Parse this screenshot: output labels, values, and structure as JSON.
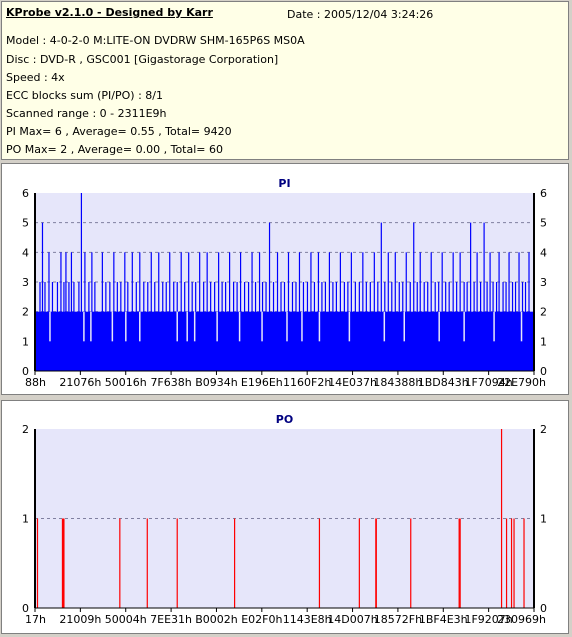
{
  "header": {
    "title": "KProbe v2.1.0 - Designed by Karr",
    "date": "Date : 2005/12/04 3:24:26",
    "model": "Model : 4-0-2-0 M:LITE-ON DVDRW SHM-165P6S MS0A",
    "disc": "Disc : DVD-R , GSC001 [Gigastorage Corporation]",
    "speed": "Speed : 4x",
    "ecc": "ECC blocks sum (PI/PO) : 8/1",
    "range": "Scanned range : 0 - 2311E9h",
    "pi_stats": "PI Max= 6 , Average= 0.55 , Total= 9420",
    "po_stats": "PO Max= 2 , Average= 0.00 , Total= 60"
  },
  "chart_data": [
    {
      "type": "bar",
      "title": "PI",
      "ylim": [
        0,
        6
      ],
      "yticks": [
        "0",
        "1",
        "2",
        "3",
        "4",
        "5",
        "6"
      ],
      "xticks": [
        "88h",
        "21076h",
        "50016h",
        "7F638h",
        "B0934h",
        "E196Eh",
        "1160F2h",
        "14E037h",
        "184388h",
        "1BD843h",
        "1F7094h",
        "22E790h"
      ],
      "grid": "dashed horizontal",
      "color": "#0000ff",
      "baseline": 2,
      "spikes": [
        {
          "x": 0.01,
          "v": 3
        },
        {
          "x": 0.015,
          "v": 5
        },
        {
          "x": 0.02,
          "v": 3
        },
        {
          "x": 0.028,
          "v": 4
        },
        {
          "x": 0.035,
          "v": 3
        },
        {
          "x": 0.045,
          "v": 3
        },
        {
          "x": 0.052,
          "v": 4
        },
        {
          "x": 0.058,
          "v": 3
        },
        {
          "x": 0.062,
          "v": 4
        },
        {
          "x": 0.068,
          "v": 3
        },
        {
          "x": 0.073,
          "v": 4
        },
        {
          "x": 0.078,
          "v": 3
        },
        {
          "x": 0.088,
          "v": 3
        },
        {
          "x": 0.093,
          "v": 6
        },
        {
          "x": 0.1,
          "v": 4
        },
        {
          "x": 0.108,
          "v": 3
        },
        {
          "x": 0.114,
          "v": 4
        },
        {
          "x": 0.12,
          "v": 3
        },
        {
          "x": 0.135,
          "v": 4
        },
        {
          "x": 0.142,
          "v": 3
        },
        {
          "x": 0.15,
          "v": 3
        },
        {
          "x": 0.158,
          "v": 4
        },
        {
          "x": 0.165,
          "v": 3
        },
        {
          "x": 0.172,
          "v": 3
        },
        {
          "x": 0.18,
          "v": 4
        },
        {
          "x": 0.186,
          "v": 3
        },
        {
          "x": 0.195,
          "v": 4
        },
        {
          "x": 0.203,
          "v": 3
        },
        {
          "x": 0.21,
          "v": 4
        },
        {
          "x": 0.218,
          "v": 3
        },
        {
          "x": 0.226,
          "v": 3
        },
        {
          "x": 0.233,
          "v": 4
        },
        {
          "x": 0.24,
          "v": 3
        },
        {
          "x": 0.248,
          "v": 4
        },
        {
          "x": 0.256,
          "v": 3
        },
        {
          "x": 0.263,
          "v": 3
        },
        {
          "x": 0.27,
          "v": 4
        },
        {
          "x": 0.278,
          "v": 3
        },
        {
          "x": 0.285,
          "v": 3
        },
        {
          "x": 0.293,
          "v": 4
        },
        {
          "x": 0.3,
          "v": 3
        },
        {
          "x": 0.308,
          "v": 4
        },
        {
          "x": 0.315,
          "v": 3
        },
        {
          "x": 0.322,
          "v": 3
        },
        {
          "x": 0.33,
          "v": 4
        },
        {
          "x": 0.338,
          "v": 3
        },
        {
          "x": 0.345,
          "v": 4
        },
        {
          "x": 0.352,
          "v": 3
        },
        {
          "x": 0.36,
          "v": 3
        },
        {
          "x": 0.368,
          "v": 4
        },
        {
          "x": 0.375,
          "v": 3
        },
        {
          "x": 0.382,
          "v": 3
        },
        {
          "x": 0.39,
          "v": 4
        },
        {
          "x": 0.398,
          "v": 3
        },
        {
          "x": 0.405,
          "v": 3
        },
        {
          "x": 0.412,
          "v": 4
        },
        {
          "x": 0.42,
          "v": 3
        },
        {
          "x": 0.428,
          "v": 3
        },
        {
          "x": 0.435,
          "v": 4
        },
        {
          "x": 0.442,
          "v": 3
        },
        {
          "x": 0.45,
          "v": 4
        },
        {
          "x": 0.456,
          "v": 3
        },
        {
          "x": 0.463,
          "v": 3
        },
        {
          "x": 0.47,
          "v": 5
        },
        {
          "x": 0.478,
          "v": 3
        },
        {
          "x": 0.486,
          "v": 4
        },
        {
          "x": 0.493,
          "v": 3
        },
        {
          "x": 0.5,
          "v": 3
        },
        {
          "x": 0.508,
          "v": 4
        },
        {
          "x": 0.516,
          "v": 3
        },
        {
          "x": 0.523,
          "v": 3
        },
        {
          "x": 0.53,
          "v": 4
        },
        {
          "x": 0.538,
          "v": 3
        },
        {
          "x": 0.546,
          "v": 3
        },
        {
          "x": 0.553,
          "v": 4
        },
        {
          "x": 0.56,
          "v": 3
        },
        {
          "x": 0.568,
          "v": 4
        },
        {
          "x": 0.575,
          "v": 3
        },
        {
          "x": 0.582,
          "v": 3
        },
        {
          "x": 0.59,
          "v": 4
        },
        {
          "x": 0.597,
          "v": 3
        },
        {
          "x": 0.604,
          "v": 3
        },
        {
          "x": 0.612,
          "v": 4
        },
        {
          "x": 0.62,
          "v": 3
        },
        {
          "x": 0.627,
          "v": 3
        },
        {
          "x": 0.634,
          "v": 4
        },
        {
          "x": 0.642,
          "v": 3
        },
        {
          "x": 0.65,
          "v": 3
        },
        {
          "x": 0.657,
          "v": 4
        },
        {
          "x": 0.664,
          "v": 3
        },
        {
          "x": 0.672,
          "v": 3
        },
        {
          "x": 0.68,
          "v": 4
        },
        {
          "x": 0.687,
          "v": 3
        },
        {
          "x": 0.694,
          "v": 5
        },
        {
          "x": 0.701,
          "v": 3
        },
        {
          "x": 0.708,
          "v": 4
        },
        {
          "x": 0.715,
          "v": 3
        },
        {
          "x": 0.722,
          "v": 4
        },
        {
          "x": 0.73,
          "v": 3
        },
        {
          "x": 0.737,
          "v": 3
        },
        {
          "x": 0.744,
          "v": 4
        },
        {
          "x": 0.752,
          "v": 3
        },
        {
          "x": 0.759,
          "v": 5
        },
        {
          "x": 0.766,
          "v": 3
        },
        {
          "x": 0.772,
          "v": 4
        },
        {
          "x": 0.78,
          "v": 3
        },
        {
          "x": 0.787,
          "v": 3
        },
        {
          "x": 0.794,
          "v": 4
        },
        {
          "x": 0.802,
          "v": 3
        },
        {
          "x": 0.809,
          "v": 3
        },
        {
          "x": 0.816,
          "v": 4
        },
        {
          "x": 0.823,
          "v": 3
        },
        {
          "x": 0.83,
          "v": 3
        },
        {
          "x": 0.838,
          "v": 4
        },
        {
          "x": 0.845,
          "v": 3
        },
        {
          "x": 0.852,
          "v": 4
        },
        {
          "x": 0.86,
          "v": 3
        },
        {
          "x": 0.866,
          "v": 3
        },
        {
          "x": 0.873,
          "v": 5
        },
        {
          "x": 0.88,
          "v": 3
        },
        {
          "x": 0.886,
          "v": 4
        },
        {
          "x": 0.893,
          "v": 3
        },
        {
          "x": 0.9,
          "v": 5
        },
        {
          "x": 0.906,
          "v": 3
        },
        {
          "x": 0.912,
          "v": 4
        },
        {
          "x": 0.918,
          "v": 3
        },
        {
          "x": 0.925,
          "v": 3
        },
        {
          "x": 0.93,
          "v": 4
        },
        {
          "x": 0.938,
          "v": 3
        },
        {
          "x": 0.944,
          "v": 3
        },
        {
          "x": 0.95,
          "v": 4
        },
        {
          "x": 0.957,
          "v": 3
        },
        {
          "x": 0.963,
          "v": 3
        },
        {
          "x": 0.97,
          "v": 4
        },
        {
          "x": 0.977,
          "v": 3
        },
        {
          "x": 0.983,
          "v": 3
        },
        {
          "x": 0.99,
          "v": 4
        }
      ],
      "dips": [
        {
          "x": 0.03,
          "v": 1
        },
        {
          "x": 0.098,
          "v": 1
        },
        {
          "x": 0.112,
          "v": 1
        },
        {
          "x": 0.155,
          "v": 1
        },
        {
          "x": 0.182,
          "v": 1
        },
        {
          "x": 0.21,
          "v": 1
        },
        {
          "x": 0.285,
          "v": 1
        },
        {
          "x": 0.305,
          "v": 1
        },
        {
          "x": 0.32,
          "v": 1
        },
        {
          "x": 0.365,
          "v": 1
        },
        {
          "x": 0.41,
          "v": 1
        },
        {
          "x": 0.455,
          "v": 1
        },
        {
          "x": 0.505,
          "v": 1
        },
        {
          "x": 0.535,
          "v": 1
        },
        {
          "x": 0.57,
          "v": 1
        },
        {
          "x": 0.63,
          "v": 1
        },
        {
          "x": 0.7,
          "v": 1
        },
        {
          "x": 0.74,
          "v": 1
        },
        {
          "x": 0.81,
          "v": 1
        },
        {
          "x": 0.86,
          "v": 1
        },
        {
          "x": 0.92,
          "v": 1
        },
        {
          "x": 0.975,
          "v": 1
        }
      ]
    },
    {
      "type": "bar",
      "title": "PO",
      "ylim": [
        0,
        2
      ],
      "yticks": [
        "0",
        "1",
        "2"
      ],
      "xticks": [
        "17h",
        "21009h",
        "50004h",
        "7EE31h",
        "B0002h",
        "E02F0h",
        "1143E8h",
        "14D007h",
        "18572Fh",
        "1BF4E3h",
        "1F9207h",
        "230969h"
      ],
      "grid": "dashed horizontal",
      "color": "#ff0000",
      "bars": [
        {
          "x": 0.005,
          "v": 1
        },
        {
          "x": 0.055,
          "v": 1
        },
        {
          "x": 0.057,
          "v": 1
        },
        {
          "x": 0.058,
          "v": 1
        },
        {
          "x": 0.17,
          "v": 1
        },
        {
          "x": 0.225,
          "v": 1
        },
        {
          "x": 0.285,
          "v": 1
        },
        {
          "x": 0.4,
          "v": 1
        },
        {
          "x": 0.57,
          "v": 1
        },
        {
          "x": 0.65,
          "v": 1
        },
        {
          "x": 0.683,
          "v": 1
        },
        {
          "x": 0.684,
          "v": 1
        },
        {
          "x": 0.753,
          "v": 1
        },
        {
          "x": 0.85,
          "v": 1
        },
        {
          "x": 0.852,
          "v": 1
        },
        {
          "x": 0.935,
          "v": 2
        },
        {
          "x": 0.945,
          "v": 1
        },
        {
          "x": 0.955,
          "v": 1
        },
        {
          "x": 0.96,
          "v": 1
        },
        {
          "x": 0.98,
          "v": 1
        }
      ]
    }
  ]
}
